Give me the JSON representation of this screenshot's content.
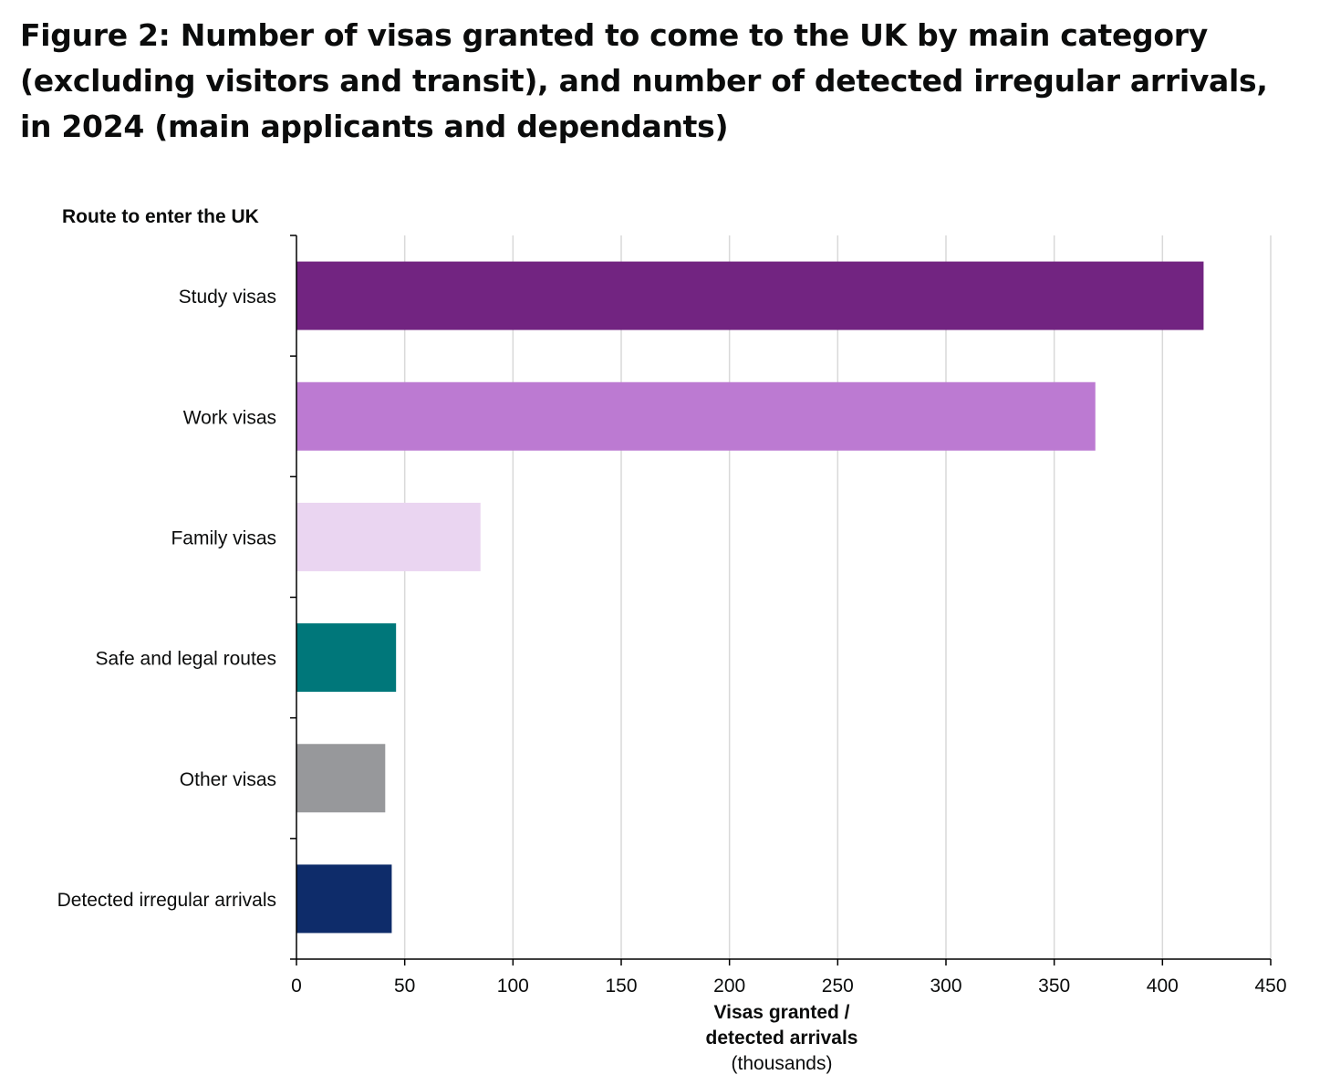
{
  "figure": {
    "title": "Figure 2: Number of visas granted to come to the UK by main category (excluding visitors and transit), and number of detected irregular arrivals, in 2024 (main applicants and dependants)"
  },
  "chart_data": {
    "type": "bar",
    "orientation": "horizontal",
    "title": "Figure 2: Number of visas granted to come to the UK by main category (excluding visitors and transit), and number of detected irregular arrivals, in 2024 (main applicants and dependants)",
    "ylabel": "Route to enter the UK",
    "xlabel": "Visas granted / detected arrivals",
    "xlabel_line1": "Visas granted /",
    "xlabel_line2": "detected arrivals",
    "xlabel_unit": "(thousands)",
    "xlim": [
      0,
      450
    ],
    "xticks": [
      0,
      50,
      100,
      150,
      200,
      250,
      300,
      350,
      400,
      450
    ],
    "grid": "vertical",
    "categories": [
      "Study visas",
      "Work visas",
      "Family visas",
      "Safe and legal routes",
      "Other visas",
      "Detected irregular arrivals"
    ],
    "values": [
      419,
      369,
      85,
      46,
      41,
      44
    ],
    "colors": [
      "#722481",
      "#bc7ad2",
      "#ead5f1",
      "#00777a",
      "#97989b",
      "#0e2c6a"
    ]
  }
}
